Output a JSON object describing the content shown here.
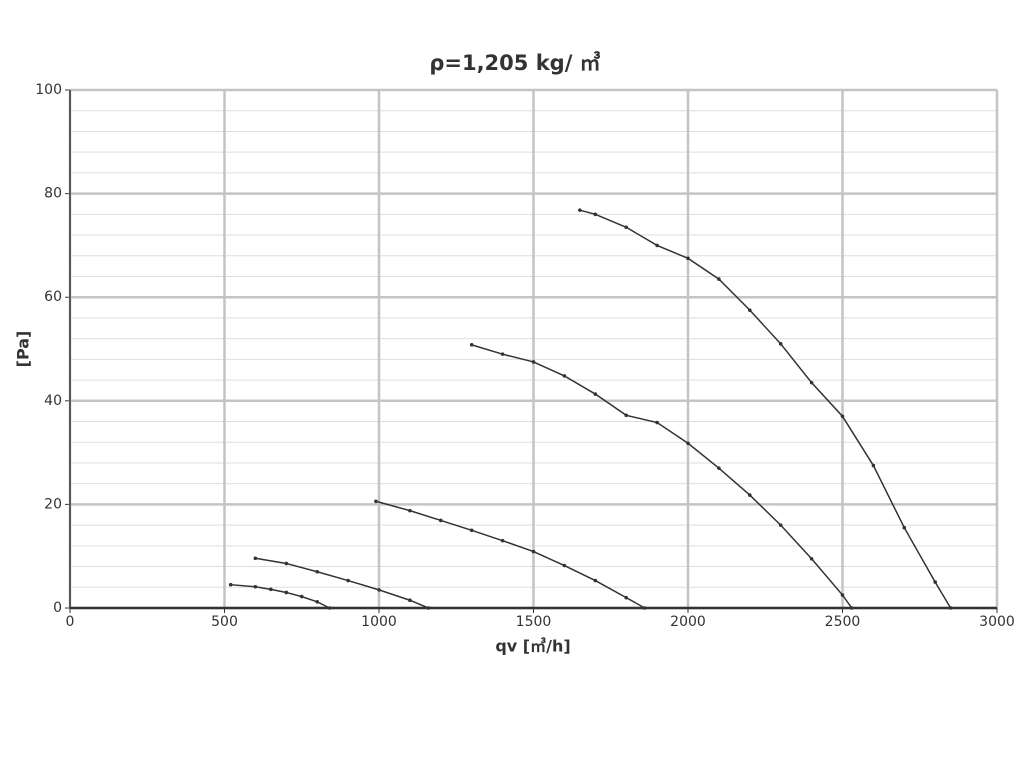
{
  "chart_data": {
    "type": "line",
    "title": "ρ=1,205 kg/ ㎥",
    "x_label": "qv [㎥/h]",
    "y_label": "[Pa]",
    "xlim": [
      0,
      3000
    ],
    "xticks": [
      0,
      500,
      1000,
      1500,
      2000,
      2500,
      3000
    ],
    "ylim": [
      0,
      100
    ],
    "yticks": [
      0,
      20,
      40,
      60,
      80,
      100
    ],
    "y_minor_ticks": [
      4,
      8,
      12,
      16,
      24,
      28,
      32,
      36,
      44,
      48,
      52,
      56,
      64,
      68,
      72,
      76,
      84,
      88,
      92,
      96
    ],
    "grid": true,
    "series": [
      {
        "color": "#333333",
        "x": [
          520,
          600,
          650,
          700,
          750,
          800,
          840
        ],
        "values": [
          4.5,
          4.1,
          3.6,
          3.0,
          2.2,
          1.2,
          0
        ]
      },
      {
        "color": "#333333",
        "x": [
          600,
          700,
          800,
          900,
          1000,
          1100,
          1160
        ],
        "values": [
          9.6,
          8.6,
          7.0,
          5.3,
          3.5,
          1.5,
          0
        ]
      },
      {
        "color": "#333333",
        "x": [
          990,
          1100,
          1200,
          1300,
          1400,
          1500,
          1600,
          1700,
          1800,
          1860
        ],
        "values": [
          20.6,
          18.8,
          16.9,
          15.0,
          13.0,
          10.9,
          8.2,
          5.3,
          2.0,
          0
        ]
      },
      {
        "color": "#333333",
        "x": [
          1300,
          1400,
          1500,
          1600,
          1700,
          1800,
          1900,
          2000,
          2100,
          2200,
          2300,
          2400,
          2500,
          2530
        ],
        "values": [
          50.8,
          49.0,
          47.5,
          44.8,
          41.3,
          37.2,
          35.8,
          31.8,
          27.0,
          21.8,
          16.0,
          9.5,
          2.5,
          0
        ]
      },
      {
        "color": "#333333",
        "x": [
          1650,
          1700,
          1800,
          1900,
          2000,
          2100,
          2200,
          2300,
          2400,
          2500,
          2600,
          2700,
          2800,
          2850
        ],
        "values": [
          76.8,
          76.0,
          73.5,
          70.0,
          67.5,
          63.5,
          57.5,
          51.0,
          43.5,
          37.0,
          27.5,
          15.5,
          5.0,
          0
        ]
      }
    ]
  }
}
